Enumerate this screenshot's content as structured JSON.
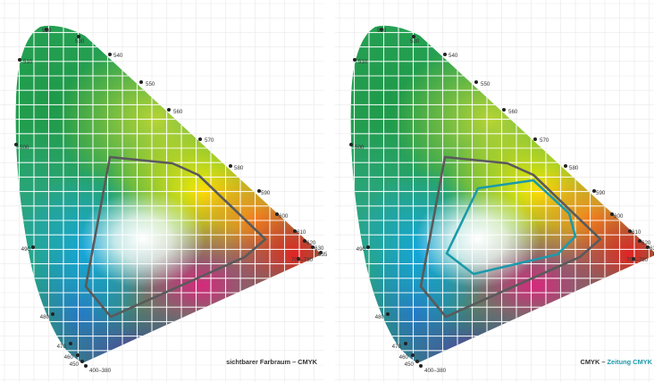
{
  "panels": [
    {
      "caption_main": "sichtbarer Farbraum – CMYK",
      "caption_accent": "",
      "outlines": [
        "cmyk"
      ]
    },
    {
      "caption_main": "CMYK – ",
      "caption_accent": "Zeitung CMYK",
      "outlines": [
        "cmyk",
        "zeitung"
      ]
    }
  ],
  "wavelength_labels": [
    "520",
    "530",
    "540",
    "550",
    "560",
    "570",
    "580",
    "590",
    "600",
    "610",
    "620",
    "630",
    "635",
    "700–780",
    "510",
    "500",
    "490",
    "480",
    "470",
    "460",
    "450",
    "400–380"
  ],
  "colors": {
    "cmyk_outline": "#5a5a5a",
    "zeitung_outline": "#1c9aaa",
    "caption_accent": "#1c9aaa",
    "grid": "#ffffff"
  }
}
